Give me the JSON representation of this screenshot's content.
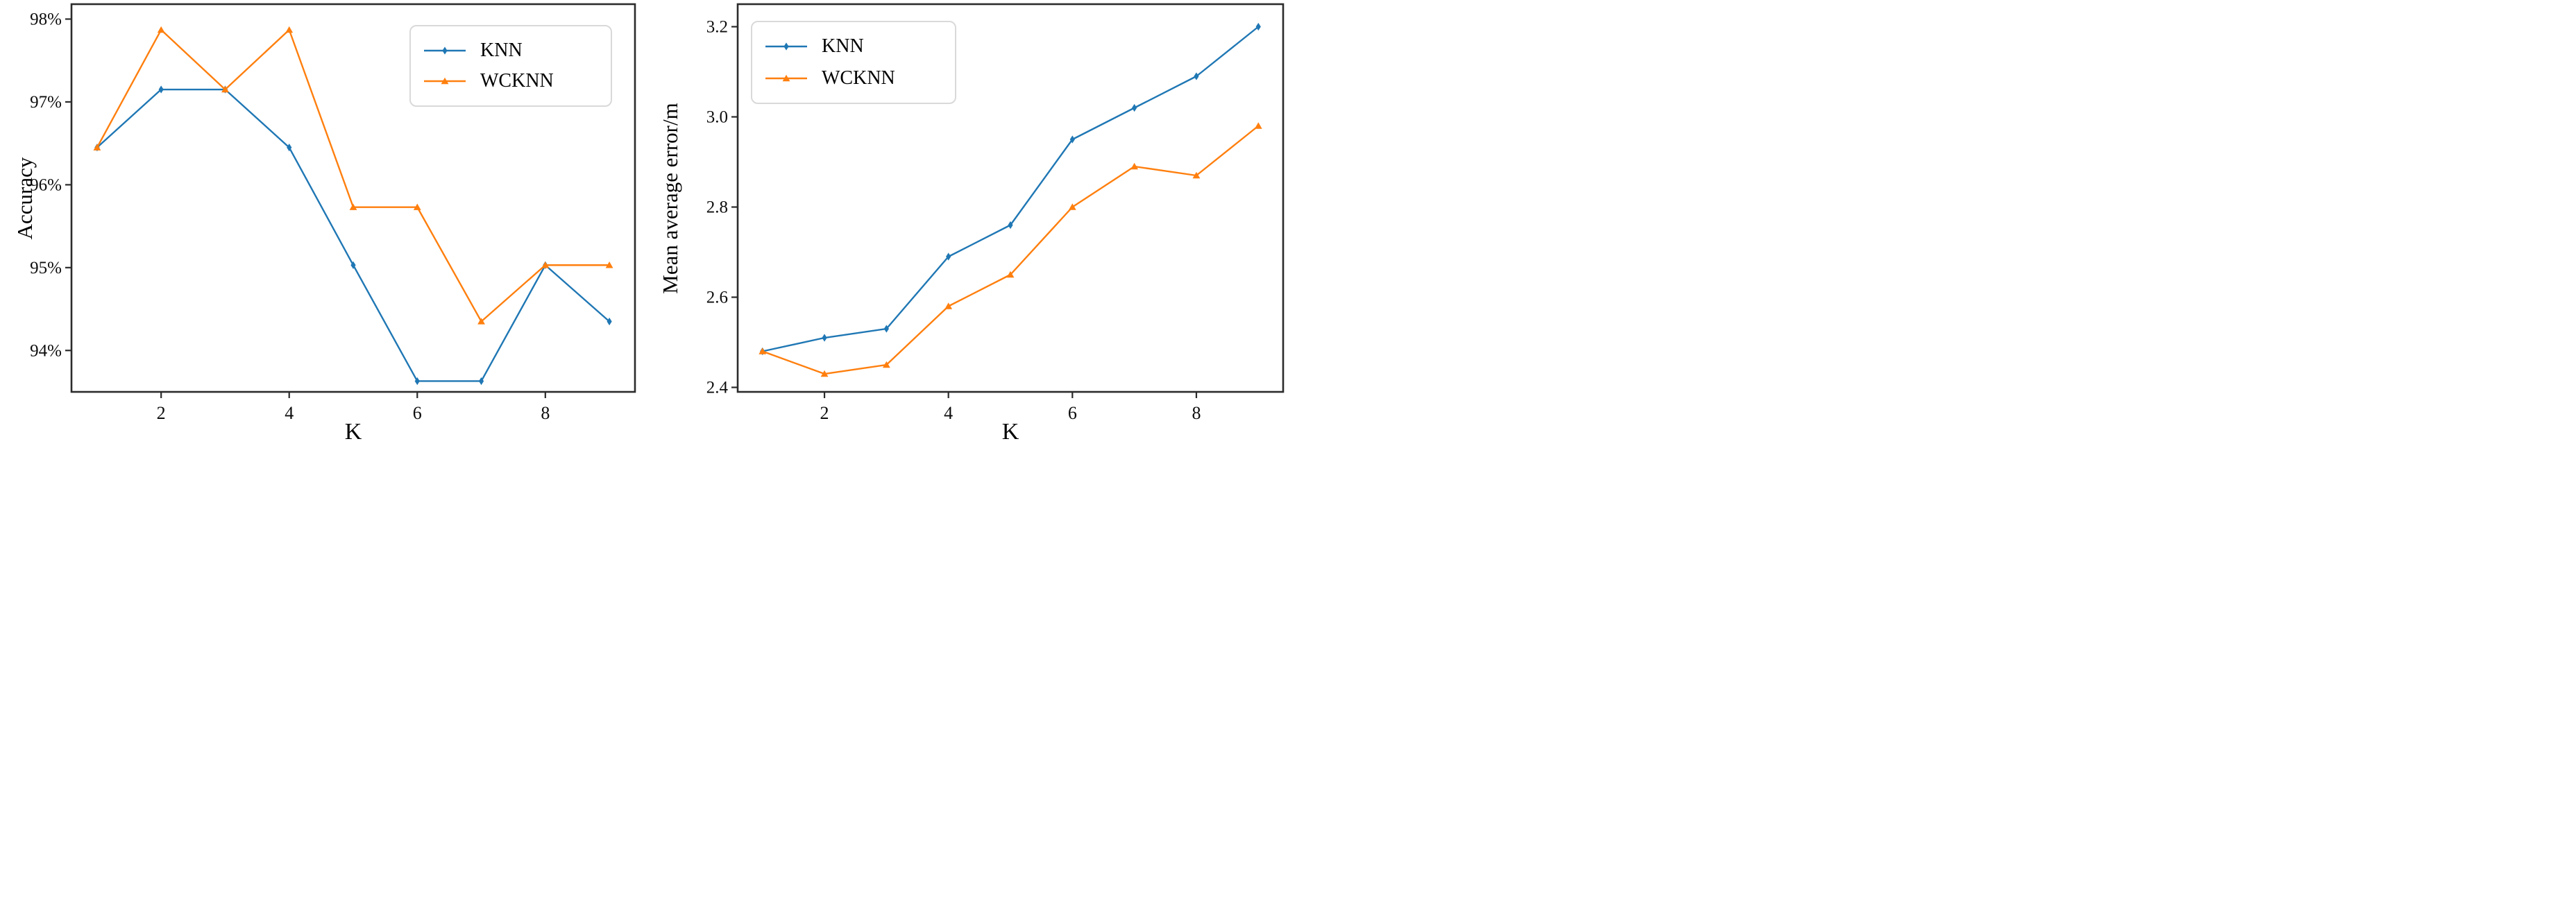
{
  "page": {
    "background": "#ffffff"
  },
  "styles": {
    "axis_color": "#2b2b2b",
    "tick_label_color": "#0d0d0d",
    "knn_color": "#1f77b4",
    "wcknn_color": "#ff7f0e"
  },
  "chart_data": [
    {
      "type": "line",
      "title": "",
      "xlabel": "K",
      "ylabel": "Accuracy",
      "x": [
        1,
        2,
        3,
        4,
        5,
        6,
        7,
        8,
        9
      ],
      "series": [
        {
          "name": "KNN",
          "color": "#1f77b4",
          "marker": "diamond",
          "values": [
            96.45,
            97.15,
            97.15,
            96.45,
            95.03,
            93.63,
            93.63,
            95.03,
            94.35
          ]
        },
        {
          "name": "WCKNN",
          "color": "#ff7f0e",
          "marker": "triangle",
          "values": [
            96.45,
            97.87,
            97.15,
            97.87,
            95.73,
            95.73,
            94.35,
            95.03,
            95.03
          ]
        }
      ],
      "xlim": [
        0.6,
        9.4
      ],
      "ylim": [
        93.5,
        98.18
      ],
      "xticks": [
        2,
        4,
        6,
        8
      ],
      "xtick_labels": [
        "2",
        "4",
        "6",
        "8"
      ],
      "yticks": [
        94,
        95,
        96,
        97,
        98
      ],
      "ytick_labels": [
        "94%",
        "95%",
        "96%",
        "97%",
        "98%"
      ],
      "grid": false,
      "legend": {
        "position": "upper-right",
        "entries": [
          "KNN",
          "WCKNN"
        ]
      }
    },
    {
      "type": "line",
      "title": "",
      "xlabel": "K",
      "ylabel": "Mean average error/m",
      "x": [
        1,
        2,
        3,
        4,
        5,
        6,
        7,
        8,
        9
      ],
      "series": [
        {
          "name": "KNN",
          "color": "#1f77b4",
          "marker": "diamond",
          "values": [
            2.48,
            2.51,
            2.53,
            2.69,
            2.76,
            2.95,
            3.02,
            3.09,
            3.2
          ]
        },
        {
          "name": "WCKNN",
          "color": "#ff7f0e",
          "marker": "triangle",
          "values": [
            2.48,
            2.43,
            2.45,
            2.58,
            2.65,
            2.8,
            2.89,
            2.87,
            2.98
          ]
        }
      ],
      "xlim": [
        0.6,
        9.4
      ],
      "ylim": [
        2.39,
        3.25
      ],
      "xticks": [
        2,
        4,
        6,
        8
      ],
      "xtick_labels": [
        "2",
        "4",
        "6",
        "8"
      ],
      "yticks": [
        2.4,
        2.6,
        2.8,
        3.0,
        3.2
      ],
      "ytick_labels": [
        "2.4",
        "2.6",
        "2.8",
        "3.0",
        "3.2"
      ],
      "grid": false,
      "legend": {
        "position": "upper-left",
        "entries": [
          "KNN",
          "WCKNN"
        ]
      }
    }
  ]
}
